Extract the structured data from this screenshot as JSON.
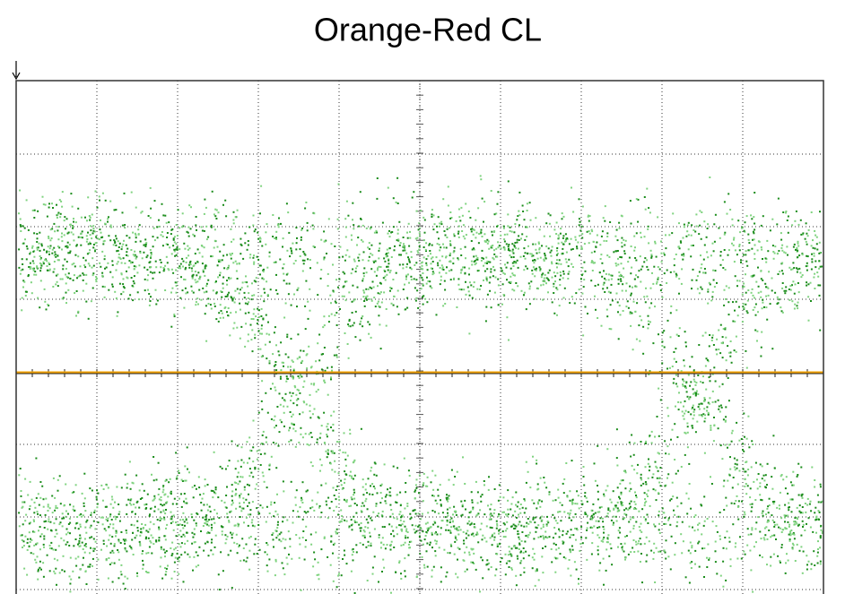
{
  "title": "Orange-Red CL"
}
